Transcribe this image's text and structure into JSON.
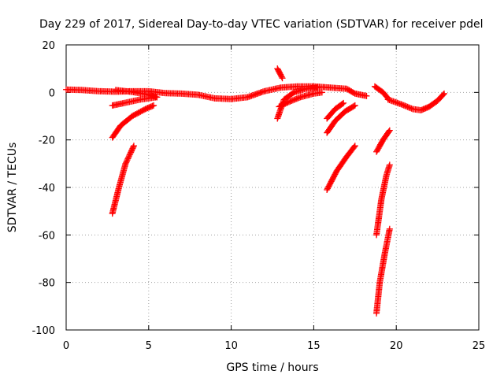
{
  "chart_data": {
    "type": "scatter",
    "title": "Day 229 of 2017, Sidereal Day-to-day VTEC variation (SDTVAR) for receiver pdel",
    "xlabel": "GPS time / hours",
    "ylabel": "SDTVAR / TECUs",
    "xlim": [
      0,
      25
    ],
    "ylim": [
      -100,
      20
    ],
    "x_ticks": [
      0,
      5,
      10,
      15,
      20,
      25
    ],
    "y_ticks": [
      -100,
      -80,
      -60,
      -40,
      -20,
      0,
      20
    ],
    "x_tick_labels": [
      "0",
      "5",
      "10",
      "15",
      "20",
      "25"
    ],
    "y_tick_labels": [
      "-100",
      "-80",
      "-60",
      "-40",
      "-20",
      "0",
      "20"
    ],
    "grid": true,
    "marker": "plus",
    "color": "#ff0000",
    "series": [
      {
        "points": [
          [
            0,
            1.2
          ],
          [
            1,
            1.0
          ],
          [
            2,
            0.5
          ],
          [
            3,
            0.3
          ],
          [
            4,
            0.5
          ],
          [
            5,
            0.5
          ],
          [
            6,
            -0.3
          ],
          [
            7,
            -0.5
          ],
          [
            8,
            -1.0
          ],
          [
            9,
            -2.5
          ],
          [
            10,
            -2.8
          ],
          [
            11,
            -2.0
          ],
          [
            12,
            0.5
          ],
          [
            13,
            2.0
          ],
          [
            14,
            2.5
          ],
          [
            15,
            2.5
          ],
          [
            16,
            2.0
          ],
          [
            17,
            1.5
          ],
          [
            17.5,
            -0.5
          ],
          [
            18.2,
            -1.5
          ]
        ]
      },
      {
        "points": [
          [
            3,
            1.0
          ],
          [
            4,
            0.2
          ],
          [
            5,
            -1.0
          ],
          [
            5.5,
            -2.0
          ]
        ]
      },
      {
        "points": [
          [
            2.8,
            -5.5
          ],
          [
            3.5,
            -4.5
          ],
          [
            4.5,
            -3.0
          ],
          [
            5.5,
            -2.0
          ]
        ]
      },
      {
        "points": [
          [
            2.8,
            -19
          ],
          [
            3.3,
            -14
          ],
          [
            4,
            -10
          ],
          [
            4.8,
            -7
          ],
          [
            5.3,
            -5.5
          ]
        ]
      },
      {
        "points": [
          [
            2.8,
            -51
          ],
          [
            3.2,
            -40
          ],
          [
            3.6,
            -30
          ],
          [
            4.1,
            -22.5
          ]
        ]
      },
      {
        "points": [
          [
            12.8,
            10
          ],
          [
            13.1,
            6
          ]
        ]
      },
      {
        "points": [
          [
            12.8,
            -11
          ],
          [
            13.2,
            -3
          ],
          [
            13.8,
            0
          ],
          [
            14.5,
            1.5
          ],
          [
            15.2,
            2
          ]
        ]
      },
      {
        "points": [
          [
            12.9,
            -6
          ],
          [
            13.5,
            -4
          ],
          [
            14.2,
            -2
          ],
          [
            15,
            -0.5
          ],
          [
            15.5,
            0
          ]
        ]
      },
      {
        "points": [
          [
            15.8,
            -11
          ],
          [
            16.3,
            -7
          ],
          [
            16.8,
            -4.5
          ]
        ]
      },
      {
        "points": [
          [
            15.8,
            -17
          ],
          [
            16.3,
            -12
          ],
          [
            16.9,
            -8
          ],
          [
            17.5,
            -5.5
          ]
        ]
      },
      {
        "points": [
          [
            15.8,
            -41
          ],
          [
            16.4,
            -33
          ],
          [
            17.0,
            -27
          ],
          [
            17.5,
            -22.5
          ]
        ]
      },
      {
        "points": [
          [
            18.7,
            2.5
          ],
          [
            19.2,
            0
          ],
          [
            19.5,
            -2.5
          ]
        ]
      },
      {
        "points": [
          [
            18.8,
            -25
          ],
          [
            19.2,
            -20
          ],
          [
            19.6,
            -16
          ]
        ]
      },
      {
        "points": [
          [
            18.8,
            -60
          ],
          [
            19.1,
            -45
          ],
          [
            19.4,
            -35
          ],
          [
            19.6,
            -30.5
          ]
        ]
      },
      {
        "points": [
          [
            18.8,
            -93
          ],
          [
            19.0,
            -80
          ],
          [
            19.3,
            -68
          ],
          [
            19.6,
            -57.5
          ]
        ]
      },
      {
        "points": [
          [
            19.5,
            -3
          ],
          [
            20.3,
            -5
          ],
          [
            21.0,
            -7
          ],
          [
            21.5,
            -7.5
          ],
          [
            22.0,
            -6
          ],
          [
            22.5,
            -3.5
          ],
          [
            22.9,
            -0.5
          ]
        ]
      }
    ]
  }
}
